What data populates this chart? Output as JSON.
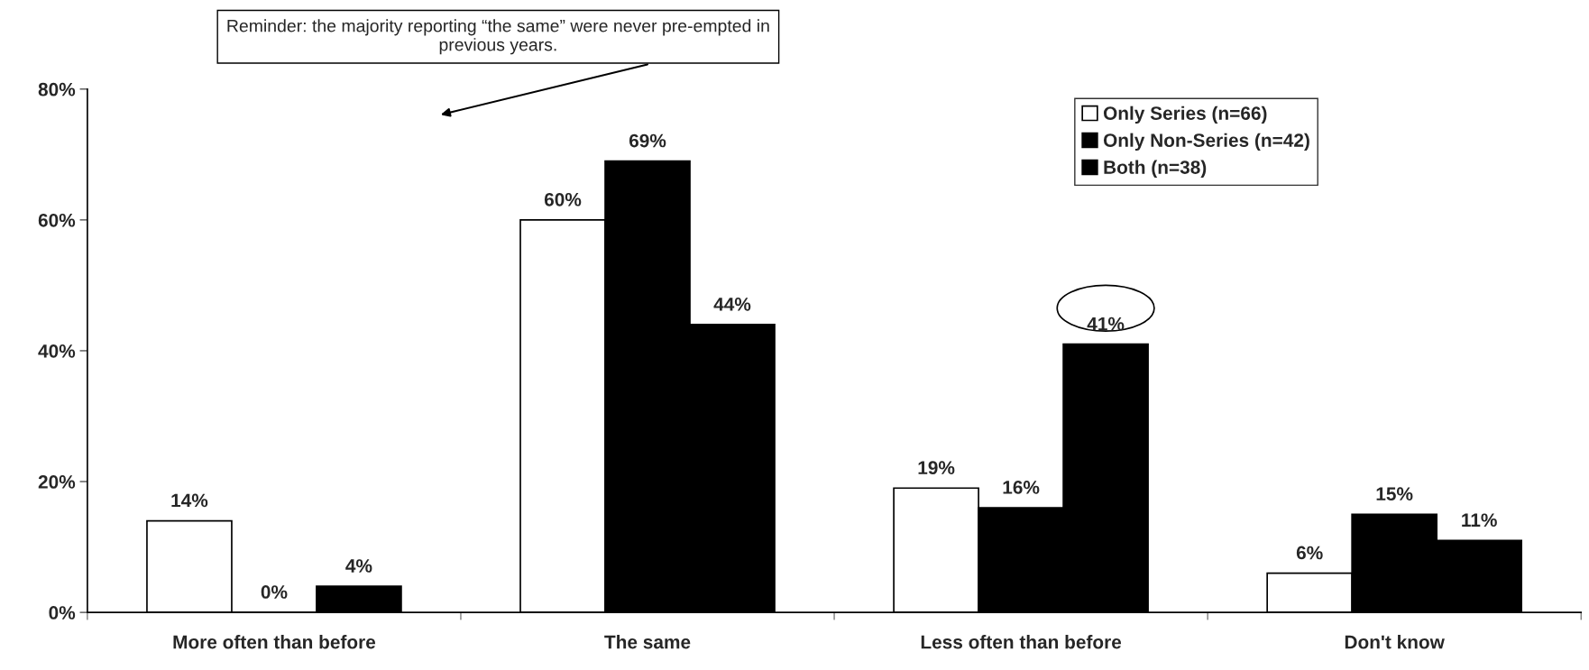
{
  "chart_data": {
    "type": "bar",
    "categories": [
      "More often than before",
      "The same",
      "Less often than before",
      "Don't know"
    ],
    "series": [
      {
        "name": "Only Series (n=66)",
        "color": "#ffffff",
        "values": [
          14,
          60,
          19,
          6
        ]
      },
      {
        "name": "Only Non-Series (n=42)",
        "color": "#000000",
        "values": [
          0,
          69,
          16,
          15
        ]
      },
      {
        "name": "Both (n=38)",
        "color": "#000000",
        "values": [
          4,
          44,
          41,
          11
        ]
      }
    ],
    "ylim": [
      0,
      80
    ],
    "yticks": [
      {
        "value": 0,
        "label": "0%"
      },
      {
        "value": 20,
        "label": "20%"
      },
      {
        "value": 40,
        "label": "40%"
      },
      {
        "value": 60,
        "label": "60%"
      },
      {
        "value": 80,
        "label": "80%"
      }
    ],
    "value_labels": [
      [
        "14%",
        "60%",
        "19%",
        "6%"
      ],
      [
        "0%",
        "69%",
        "16%",
        "15%"
      ],
      [
        "4%",
        "44%",
        "41%",
        "11%"
      ]
    ],
    "annotations": [
      "Reminder: the majority reporting “the same” were never pre-empted in previous years."
    ],
    "legend": "top right",
    "grid": false
  }
}
